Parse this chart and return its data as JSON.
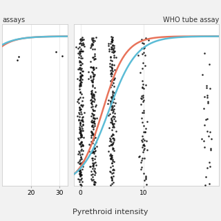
{
  "title_left": "assays",
  "title_right": "WHO tube assay",
  "xlabel": "Pyrethroid intensity",
  "background_color": "#f2f2f2",
  "panel_bg": "#ffffff",
  "grid_color": "#e8e8e8",
  "color_orange": "#E8735A",
  "color_teal": "#5BBCD6",
  "ylim": [
    0.0,
    1.08
  ],
  "left_xlim": [
    10,
    33
  ],
  "right_xlim": [
    -1.0,
    22
  ],
  "left_xticks": [
    20,
    30
  ],
  "right_xticks": [
    0,
    10
  ],
  "point_size": 3.5,
  "point_color": "#111111",
  "line_width": 1.8,
  "spine_color": "#cccccc"
}
